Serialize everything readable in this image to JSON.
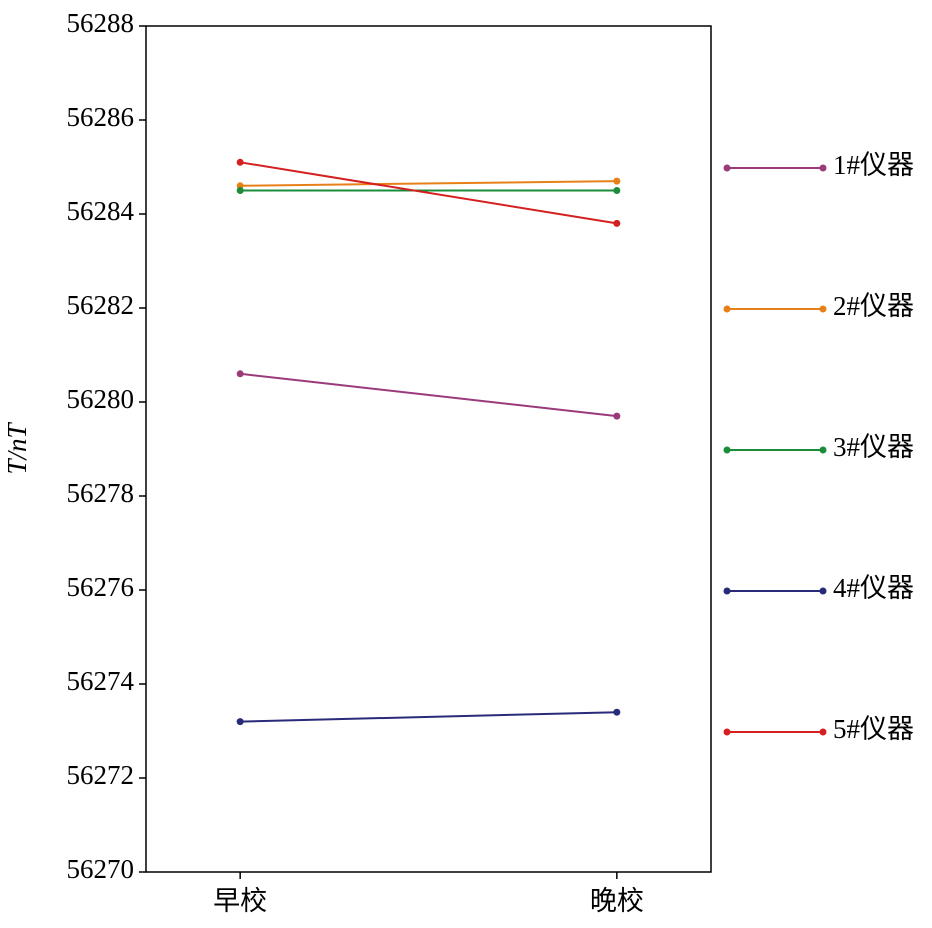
{
  "chart_data": {
    "type": "line",
    "ylabel": "T/nT",
    "categories": [
      "早校",
      "晚校"
    ],
    "series": [
      {
        "name": "1#仪器",
        "color": "#9b3a7a",
        "values": [
          56280.6,
          56279.7
        ]
      },
      {
        "name": "2#仪器",
        "color": "#e8801a",
        "values": [
          56284.6,
          56284.7
        ]
      },
      {
        "name": "3#仪器",
        "color": "#1a8c3a",
        "values": [
          56284.5,
          56284.5
        ]
      },
      {
        "name": "4#仪器",
        "color": "#2a2a7a",
        "values": [
          56273.2,
          56273.4
        ]
      },
      {
        "name": "5#仪器",
        "color": "#d42020",
        "values": [
          56285.1,
          56283.8
        ]
      }
    ],
    "ylim": [
      56270,
      56288
    ],
    "yticks": [
      56270,
      56272,
      56274,
      56276,
      56278,
      56280,
      56282,
      56284,
      56286,
      56288
    ],
    "grid": false,
    "legend": "right"
  }
}
